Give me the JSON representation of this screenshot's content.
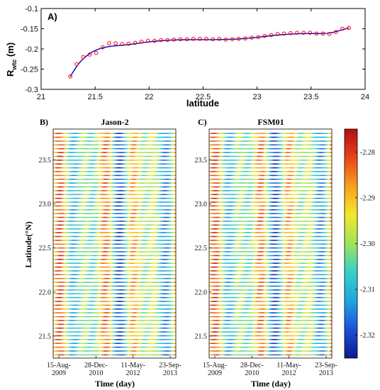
{
  "chart_data": [
    {
      "type": "line",
      "panel_label": "A)",
      "xlabel": "latitude",
      "ylabel": "R",
      "ylabel_sub": "wtc",
      "ylabel_unit": " (m)",
      "xlim": [
        21,
        24
      ],
      "ylim": [
        -0.3,
        -0.1
      ],
      "xticks": [
        "21",
        "21.5",
        "22",
        "22.5",
        "23",
        "23.5",
        "24"
      ],
      "yticks": [
        "-0.1",
        "-0.15",
        "-0.2",
        "-0.25",
        "-0.3"
      ],
      "grid": false,
      "series": [
        {
          "style": "markers",
          "color": "#ff0000",
          "x": [
            21.27,
            21.33,
            21.39,
            21.45,
            21.51,
            21.57,
            21.63,
            21.69,
            21.75,
            21.81,
            21.87,
            21.93,
            21.99,
            22.05,
            22.11,
            22.17,
            22.23,
            22.29,
            22.35,
            22.41,
            22.47,
            22.53,
            22.59,
            22.65,
            22.71,
            22.77,
            22.83,
            22.89,
            22.95,
            23.01,
            23.07,
            23.13,
            23.19,
            23.25,
            23.31,
            23.37,
            23.43,
            23.49,
            23.55,
            23.61,
            23.67,
            23.73,
            23.79,
            23.85
          ],
          "y": [
            -0.268,
            -0.238,
            -0.22,
            -0.214,
            -0.21,
            -0.196,
            -0.186,
            -0.186,
            -0.188,
            -0.187,
            -0.185,
            -0.182,
            -0.18,
            -0.18,
            -0.178,
            -0.178,
            -0.177,
            -0.176,
            -0.176,
            -0.175,
            -0.175,
            -0.175,
            -0.176,
            -0.175,
            -0.177,
            -0.176,
            -0.175,
            -0.174,
            -0.172,
            -0.171,
            -0.168,
            -0.166,
            -0.163,
            -0.162,
            -0.161,
            -0.16,
            -0.16,
            -0.16,
            -0.162,
            -0.162,
            -0.163,
            -0.158,
            -0.15,
            -0.148
          ]
        },
        {
          "style": "line",
          "color": "#0000cc",
          "x": [
            21.27,
            21.35,
            21.45,
            21.55,
            21.65,
            21.75,
            21.85,
            21.95,
            22.05,
            22.2,
            22.35,
            22.5,
            22.65,
            22.8,
            22.95,
            23.1,
            23.25,
            23.4,
            23.55,
            23.65,
            23.75,
            23.85
          ],
          "y": [
            -0.268,
            -0.234,
            -0.21,
            -0.198,
            -0.193,
            -0.191,
            -0.188,
            -0.184,
            -0.181,
            -0.178,
            -0.177,
            -0.177,
            -0.177,
            -0.176,
            -0.173,
            -0.168,
            -0.164,
            -0.162,
            -0.162,
            -0.162,
            -0.156,
            -0.148
          ]
        }
      ]
    },
    {
      "type": "heatmap",
      "panel_label": "B)",
      "title": "Jason-2",
      "xlabel": "Time (day)",
      "ylabel": "Latitude(°N)",
      "xticks": [
        "15-Aug-\n2009",
        "28-Dec-\n2010",
        "11-May-\n2012",
        "23-Sep-\n2013"
      ],
      "yticks": [
        "23.5",
        "23.0",
        "22.5",
        "22.0",
        "21.5"
      ],
      "ylim": [
        21.25,
        23.85
      ]
    },
    {
      "type": "heatmap",
      "panel_label": "C)",
      "title": "FSM01",
      "xlabel": "Time (day)",
      "xticks": [
        "15-Aug-\n2009",
        "28-Dec-\n2010",
        "11-May-\n2012",
        "23-Sep-\n2013"
      ],
      "yticks": [
        "23.5",
        "23.0",
        "22.5",
        "22.0",
        "21.5"
      ],
      "ylim": [
        21.25,
        23.85
      ]
    },
    {
      "type": "colorbar",
      "ticks": [
        "-2.28",
        "-2.29",
        "-2.30",
        "-2.31",
        "-2.32"
      ],
      "range": [
        -2.325,
        -2.275
      ],
      "colors": [
        "#0a1a8c",
        "#1d4fd8",
        "#1fa6e0",
        "#37d0c8",
        "#9ee35a",
        "#f4e829",
        "#f6a21c",
        "#e8441a",
        "#b00f0f"
      ]
    }
  ]
}
